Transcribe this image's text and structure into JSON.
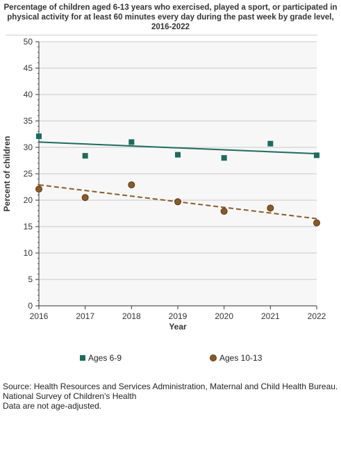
{
  "title_lines": [
    "Percentage of children aged 6-13 years who exercised, played a sport, or participated in",
    "physical activity for at least 60 minutes every day during the past week by grade level,",
    "2016-2022"
  ],
  "footnotes": [
    "Source: Health Resources and Services Administration, Maternal and Child Health Bureau.",
    "National Survey of Children's Health",
    "Data are not age-adjusted."
  ],
  "chart_data": {
    "type": "scatter",
    "xlabel": "Year",
    "ylabel": "Percent of children",
    "x": [
      2016,
      2017,
      2018,
      2019,
      2020,
      2021,
      2022
    ],
    "xlim": [
      2016,
      2022
    ],
    "ylim": [
      0,
      50
    ],
    "yticks": [
      0,
      5,
      10,
      15,
      20,
      25,
      30,
      35,
      40,
      45,
      50
    ],
    "grid": true,
    "legend_position": "bottom",
    "series": [
      {
        "name": "Ages 6-9",
        "marker": "square",
        "color": "#1e6b5e",
        "values": [
          32.1,
          28.4,
          31.0,
          28.6,
          28.0,
          30.7,
          28.5
        ],
        "trend": {
          "style": "solid",
          "start": 31.0,
          "end": 28.8
        }
      },
      {
        "name": "Ages 10-13",
        "marker": "circle",
        "color": "#8b5a2b",
        "values": [
          22.1,
          20.5,
          22.9,
          19.7,
          17.9,
          18.5,
          15.7
        ],
        "trend": {
          "style": "dashed",
          "start": 22.9,
          "end": 16.5
        }
      }
    ]
  }
}
